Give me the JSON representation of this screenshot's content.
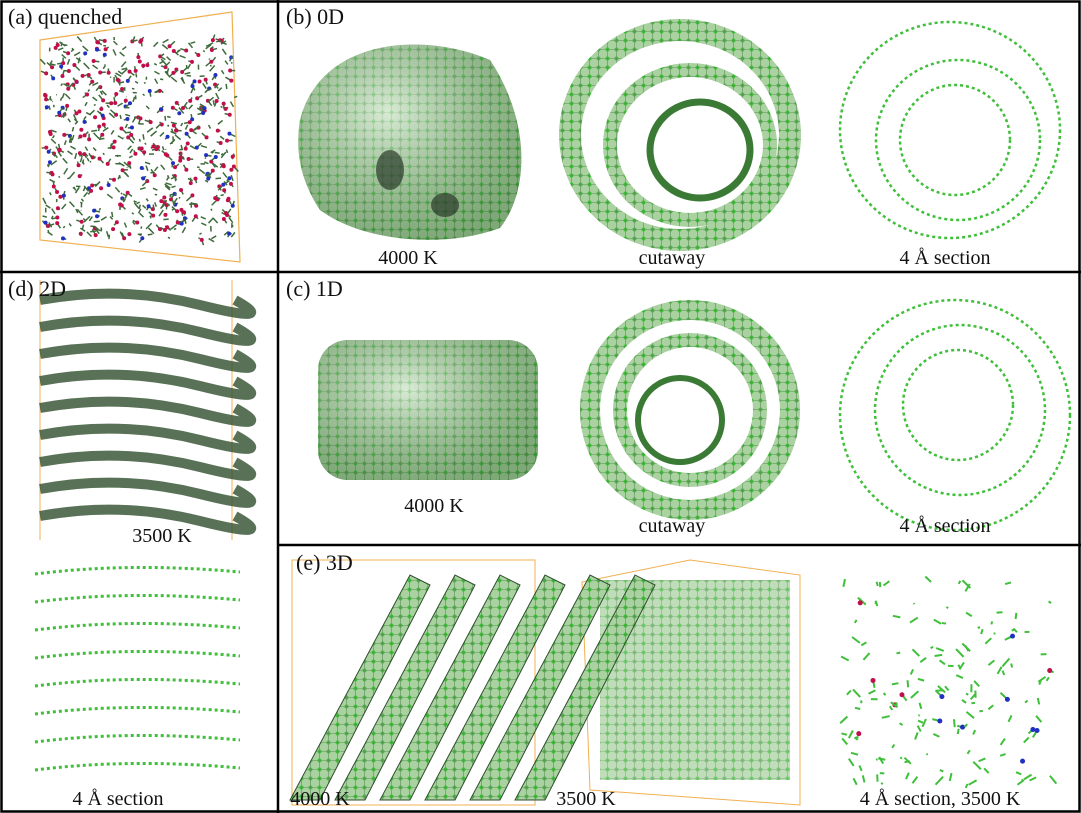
{
  "panels": [
    {
      "label": "(a) quenched",
      "captions": []
    },
    {
      "label": "(b) 0D",
      "captions": [
        "4000 K",
        "cutaway",
        "4 Å section"
      ]
    },
    {
      "label": "(d) 2D",
      "captions": [
        "3500 K",
        "4 Å section"
      ]
    },
    {
      "label": "(c) 1D",
      "captions": [
        "4000 K",
        "cutaway",
        "4 Å section"
      ]
    },
    {
      "label": "(e) 3D",
      "captions": [
        "4000 K",
        "3500 K",
        "4 Å section, 3500 K"
      ]
    }
  ]
}
